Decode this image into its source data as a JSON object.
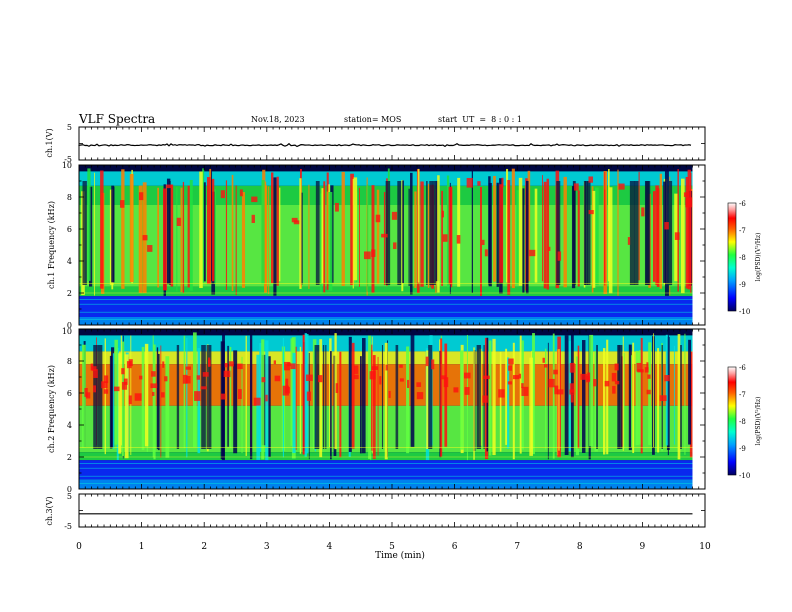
{
  "header": {
    "title": "VLF Spectra",
    "date": "Nov.18, 2023",
    "station": "station= MOS",
    "start_ut": "start  UT  =  8 : 0 : 1"
  },
  "colors": {
    "frame": "#000000",
    "background_spectrum": "#0a0f2e",
    "colormap": [
      "#000060",
      "#0000ff",
      "#00a0ff",
      "#00ffd0",
      "#20ff40",
      "#ffff00",
      "#ff6000",
      "#ff0000",
      "#ffa0a0",
      "#ffffff"
    ]
  },
  "chart_data": [
    {
      "type": "line",
      "panel": "ch1_voltage",
      "ylabel": "ch.1(V)",
      "ylim": [
        -5,
        5
      ],
      "y_tick_labels": [
        "5",
        "-5"
      ],
      "x": [
        0,
        9.8
      ],
      "values": [
        -0.5,
        -0.5
      ]
    },
    {
      "type": "heatmap",
      "panel": "ch1_spectrum",
      "ylabel": "ch.1 Frequency (kHz)",
      "ylim": [
        0,
        10
      ],
      "y_tick_labels": [
        "0",
        "2",
        "4",
        "6",
        "8",
        "10"
      ],
      "xlim": [
        0,
        10
      ],
      "data_extent_x": [
        0,
        9.8
      ],
      "colorbar": {
        "label": "log(PSD)(V²/Hz)",
        "range": [
          -10,
          -6
        ],
        "tick_labels": [
          "-6",
          "-7",
          "-8",
          "-9",
          "-10"
        ]
      }
    },
    {
      "type": "heatmap",
      "panel": "ch2_spectrum",
      "ylabel": "ch.2 Frequency (kHz)",
      "ylim": [
        0,
        10
      ],
      "y_tick_labels": [
        "0",
        "2",
        "4",
        "6",
        "8",
        "10"
      ],
      "xlim": [
        0,
        10
      ],
      "data_extent_x": [
        0,
        9.8
      ],
      "colorbar": {
        "label": "log(PSD)(V²/Hz)",
        "range": [
          -10,
          -6
        ],
        "tick_labels": [
          "-6",
          "-7",
          "-8",
          "-9",
          "-10"
        ]
      }
    },
    {
      "type": "line",
      "panel": "ch3_voltage",
      "ylabel": "ch.3(V)",
      "ylim": [
        -5,
        5
      ],
      "y_tick_labels": [
        "5",
        "-5"
      ],
      "x": [
        0,
        9.8
      ],
      "values": [
        -1,
        -1
      ]
    }
  ],
  "x_axis": {
    "label": "Time (min)",
    "xlim": [
      0,
      10
    ],
    "tick_labels": [
      "0",
      "1",
      "2",
      "3",
      "4",
      "5",
      "6",
      "7",
      "8",
      "9",
      "10"
    ]
  }
}
